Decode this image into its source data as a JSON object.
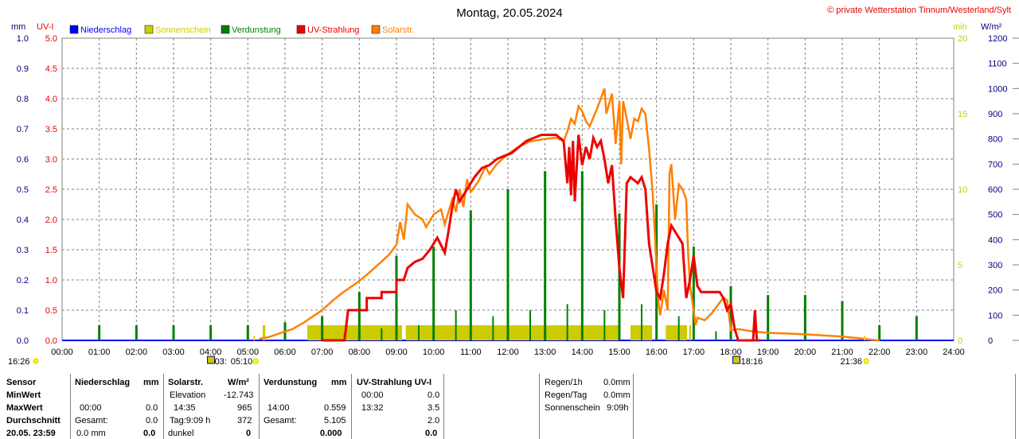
{
  "title": "Montag, 20.05.2024",
  "copyright": "© private Wetterstation Tinnum/Westerland/Sylt",
  "units": {
    "mm": "mm",
    "uvi": "UV-I",
    "min": "min",
    "wm2": "W/m²"
  },
  "legend": [
    {
      "label": "Niederschlag",
      "color": "#0000ff"
    },
    {
      "label": "Sonnenschein",
      "color": "#cccc00"
    },
    {
      "label": "Verdunstung",
      "color": "#008000"
    },
    {
      "label": "UV-Strahlung",
      "color": "#ee0000"
    },
    {
      "label": "Solarstr.",
      "color": "#ff8000"
    }
  ],
  "colors": {
    "grid": "#808080",
    "sunshine": "#cccc00",
    "evap": "#008000",
    "uv": "#ee0000",
    "solar": "#ff8000",
    "mmaxis": "#000080",
    "uvaxis": "#ee0000",
    "minaxis": "#cccc00"
  },
  "chart_data": {
    "type": "line",
    "x_range": [
      0,
      24
    ],
    "x_ticks": [
      "00:00",
      "01:00",
      "02:00",
      "03:00",
      "04:00",
      "05:00",
      "06:00",
      "07:00",
      "08:00",
      "09:00",
      "10:00",
      "11:00",
      "12:00",
      "13:00",
      "14:00",
      "15:00",
      "16:00",
      "17:00",
      "18:00",
      "19:00",
      "20:00",
      "21:00",
      "22:00",
      "23:00",
      "24:00"
    ],
    "axes": {
      "mm": {
        "range": [
          0,
          1
        ],
        "ticks": [
          "0.0",
          "0.1",
          "0.2",
          "0.3",
          "0.4",
          "0.5",
          "0.6",
          "0.7",
          "0.8",
          "0.9",
          "1.0"
        ]
      },
      "uvi": {
        "range": [
          0,
          5
        ],
        "ticks": [
          "0.0",
          "0.5",
          "1.0",
          "1.5",
          "2.0",
          "2.5",
          "3.0",
          "3.5",
          "4.0",
          "4.5",
          "5.0"
        ]
      },
      "min": {
        "range": [
          0,
          20
        ],
        "ticks": [
          "0",
          "5",
          "10",
          "15",
          "20"
        ]
      },
      "wm2": {
        "range": [
          0,
          1200
        ],
        "ticks": [
          "0",
          "100",
          "200",
          "300",
          "400",
          "500",
          "600",
          "700",
          "800",
          "900",
          "1000",
          "1100",
          "1200"
        ]
      }
    },
    "sunrise": {
      "time": "05:10",
      "label": "05:10",
      "pre": "03:",
      "hour": 5.17
    },
    "sunset": {
      "time": "21:36",
      "label": "21:36",
      "hour": 21.6
    },
    "dawn_label": "16:26",
    "marker_1816": {
      "label": "18:16",
      "hour": 18.27
    },
    "series": [
      {
        "name": "Solarstr.",
        "unit": "W/m²",
        "points": [
          [
            5.3,
            5
          ],
          [
            5.6,
            15
          ],
          [
            5.9,
            30
          ],
          [
            6.2,
            45
          ],
          [
            6.5,
            70
          ],
          [
            6.8,
            100
          ],
          [
            7.0,
            120
          ],
          [
            7.3,
            160
          ],
          [
            7.6,
            195
          ],
          [
            7.9,
            225
          ],
          [
            8.2,
            260
          ],
          [
            8.5,
            300
          ],
          [
            8.8,
            340
          ],
          [
            9.0,
            380
          ],
          [
            9.1,
            470
          ],
          [
            9.2,
            400
          ],
          [
            9.3,
            540
          ],
          [
            9.5,
            500
          ],
          [
            9.7,
            480
          ],
          [
            9.8,
            450
          ],
          [
            10.0,
            500
          ],
          [
            10.2,
            520
          ],
          [
            10.3,
            460
          ],
          [
            10.5,
            560
          ],
          [
            10.6,
            510
          ],
          [
            10.7,
            600
          ],
          [
            10.8,
            530
          ],
          [
            10.9,
            640
          ],
          [
            11.0,
            590
          ],
          [
            11.2,
            630
          ],
          [
            11.4,
            690
          ],
          [
            11.5,
            660
          ],
          [
            11.7,
            700
          ],
          [
            12.0,
            740
          ],
          [
            12.3,
            770
          ],
          [
            12.6,
            790
          ],
          [
            13.0,
            800
          ],
          [
            13.3,
            805
          ],
          [
            13.5,
            790
          ],
          [
            13.6,
            830
          ],
          [
            13.7,
            880
          ],
          [
            13.8,
            860
          ],
          [
            13.9,
            930
          ],
          [
            14.0,
            910
          ],
          [
            14.1,
            870
          ],
          [
            14.2,
            850
          ],
          [
            14.4,
            920
          ],
          [
            14.6,
            1000
          ],
          [
            14.65,
            900
          ],
          [
            14.8,
            980
          ],
          [
            14.9,
            780
          ],
          [
            15.0,
            950
          ],
          [
            15.05,
            700
          ],
          [
            15.1,
            950
          ],
          [
            15.2,
            880
          ],
          [
            15.3,
            800
          ],
          [
            15.4,
            880
          ],
          [
            15.5,
            870
          ],
          [
            15.6,
            920
          ],
          [
            15.7,
            900
          ],
          [
            15.8,
            760
          ],
          [
            15.9,
            580
          ],
          [
            16.0,
            290
          ],
          [
            16.05,
            150
          ],
          [
            16.1,
            100
          ],
          [
            16.2,
            200
          ],
          [
            16.3,
            120
          ],
          [
            16.35,
            660
          ],
          [
            16.4,
            700
          ],
          [
            16.5,
            480
          ],
          [
            16.6,
            620
          ],
          [
            16.7,
            600
          ],
          [
            16.8,
            560
          ],
          [
            16.85,
            350
          ],
          [
            16.9,
            220
          ],
          [
            17.0,
            120
          ],
          [
            17.05,
            60
          ],
          [
            17.1,
            90
          ],
          [
            17.3,
            80
          ],
          [
            17.5,
            110
          ],
          [
            17.6,
            130
          ],
          [
            17.7,
            150
          ],
          [
            17.8,
            170
          ],
          [
            17.9,
            160
          ],
          [
            18.0,
            40
          ],
          [
            18.2,
            45
          ],
          [
            18.4,
            40
          ],
          [
            18.6,
            35
          ],
          [
            19.0,
            30
          ],
          [
            19.5,
            27
          ],
          [
            20.0,
            24
          ],
          [
            20.5,
            20
          ],
          [
            21.0,
            15
          ],
          [
            21.5,
            8
          ],
          [
            21.8,
            2
          ],
          [
            22.0,
            0
          ]
        ]
      },
      {
        "name": "UV-Strahlung",
        "unit": "UV-I",
        "points": [
          [
            7.0,
            0
          ],
          [
            7.6,
            0
          ],
          [
            7.7,
            0.5
          ],
          [
            8.2,
            0.5
          ],
          [
            8.2,
            0.7
          ],
          [
            8.6,
            0.7
          ],
          [
            8.6,
            0.8
          ],
          [
            9.0,
            0.8
          ],
          [
            9.0,
            1.0
          ],
          [
            9.2,
            1.0
          ],
          [
            9.3,
            1.2
          ],
          [
            9.5,
            1.3
          ],
          [
            9.7,
            1.35
          ],
          [
            9.9,
            1.5
          ],
          [
            10.1,
            1.7
          ],
          [
            10.3,
            1.45
          ],
          [
            10.4,
            1.8
          ],
          [
            10.5,
            2.2
          ],
          [
            10.6,
            2.5
          ],
          [
            10.7,
            2.3
          ],
          [
            10.9,
            2.5
          ],
          [
            11.1,
            2.7
          ],
          [
            11.3,
            2.85
          ],
          [
            11.5,
            2.9
          ],
          [
            11.7,
            3.0
          ],
          [
            11.9,
            3.05
          ],
          [
            12.1,
            3.1
          ],
          [
            12.3,
            3.2
          ],
          [
            12.5,
            3.3
          ],
          [
            12.7,
            3.35
          ],
          [
            12.9,
            3.4
          ],
          [
            13.1,
            3.4
          ],
          [
            13.3,
            3.4
          ],
          [
            13.5,
            3.3
          ],
          [
            13.6,
            2.6
          ],
          [
            13.65,
            3.2
          ],
          [
            13.7,
            2.4
          ],
          [
            13.75,
            3.3
          ],
          [
            13.8,
            2.3
          ],
          [
            13.9,
            3.4
          ],
          [
            14.0,
            2.9
          ],
          [
            14.1,
            3.2
          ],
          [
            14.2,
            3.0
          ],
          [
            14.3,
            3.35
          ],
          [
            14.4,
            3.2
          ],
          [
            14.5,
            3.3
          ],
          [
            14.6,
            3.0
          ],
          [
            14.7,
            2.6
          ],
          [
            14.8,
            2.9
          ],
          [
            14.9,
            2.0
          ],
          [
            15.0,
            1.2
          ],
          [
            15.1,
            0.7
          ],
          [
            15.2,
            2.6
          ],
          [
            15.3,
            2.7
          ],
          [
            15.5,
            2.6
          ],
          [
            15.6,
            2.7
          ],
          [
            15.7,
            2.5
          ],
          [
            15.8,
            1.6
          ],
          [
            15.9,
            1.2
          ],
          [
            16.0,
            0.8
          ],
          [
            16.1,
            0.7
          ],
          [
            16.2,
            1.1
          ],
          [
            16.3,
            1.6
          ],
          [
            16.4,
            1.9
          ],
          [
            16.6,
            1.7
          ],
          [
            16.7,
            1.6
          ],
          [
            16.8,
            0.7
          ],
          [
            16.9,
            1.0
          ],
          [
            17.0,
            1.4
          ],
          [
            17.1,
            0.9
          ],
          [
            17.2,
            0.8
          ],
          [
            17.5,
            0.8
          ],
          [
            17.7,
            0.8
          ],
          [
            17.8,
            0.7
          ],
          [
            17.9,
            0.5
          ],
          [
            18.0,
            0.6
          ],
          [
            18.1,
            0.2
          ],
          [
            18.2,
            0.0
          ],
          [
            18.6,
            0.0
          ],
          [
            18.65,
            0.5
          ],
          [
            18.7,
            0.0
          ],
          [
            18.8,
            0.0
          ]
        ]
      },
      {
        "name": "Verdunstung",
        "unit": "mm",
        "bars": [
          [
            1,
            0.05
          ],
          [
            2,
            0.05
          ],
          [
            3,
            0.05
          ],
          [
            4,
            0.05
          ],
          [
            5,
            0.05
          ],
          [
            6,
            0.06
          ],
          [
            7,
            0.08
          ],
          [
            8,
            0.16
          ],
          [
            9,
            0.28
          ],
          [
            10,
            0.31
          ],
          [
            11,
            0.43
          ],
          [
            12,
            0.5
          ],
          [
            13,
            0.56
          ],
          [
            14,
            0.56
          ],
          [
            15,
            0.42
          ],
          [
            16,
            0.45
          ],
          [
            17,
            0.31
          ],
          [
            18,
            0.18
          ],
          [
            19,
            0.15
          ],
          [
            20,
            0.15
          ],
          [
            21,
            0.13
          ],
          [
            22,
            0.05
          ],
          [
            23,
            0.08
          ]
        ],
        "minor": [
          [
            7.6,
            0.02
          ],
          [
            8.6,
            0.04
          ],
          [
            9.6,
            0.05
          ],
          [
            10.6,
            0.1
          ],
          [
            11.6,
            0.08
          ],
          [
            12.6,
            0.1
          ],
          [
            13.6,
            0.12
          ],
          [
            14.6,
            0.1
          ],
          [
            15.6,
            0.12
          ],
          [
            16.6,
            0.08
          ],
          [
            17.6,
            0.03
          ],
          [
            18.6,
            0.02
          ]
        ]
      },
      {
        "name": "Sonnenschein",
        "unit": "min",
        "blocks": [
          [
            5.4,
            5.47,
            1.0
          ],
          [
            6.6,
            9.15,
            1.0
          ],
          [
            9.25,
            15.0,
            1.0
          ],
          [
            15.3,
            15.88,
            1.0
          ],
          [
            16.25,
            16.82,
            1.0
          ],
          [
            16.88,
            16.93,
            1.0
          ]
        ]
      }
    ]
  },
  "table": {
    "rows": {
      "r1": "Sensor",
      "r2": "MinWert",
      "r3": "MaxWert",
      "r4": "Durchschnitt",
      "r5": "20.05. 23:59"
    },
    "nied": {
      "head": "Niederschlag",
      "unit": "mm",
      "max_time": "00:00",
      "max_val": "0.0",
      "avg_label": "Gesamt:",
      "avg_val": "0.0",
      "sum_val": "0.0 mm",
      "total": "0.0"
    },
    "solar": {
      "head": "Solarstr.",
      "unit": "W/m²",
      "min_label": "Elevation",
      "min_val": "-12.743",
      "max_time": "14:35",
      "max_val": "965",
      "avg_label": "Tag:9:09 h",
      "avg_val": "372",
      "dark_label": "dunkel",
      "dark_val": "0"
    },
    "verd": {
      "head": "Verdunstung",
      "unit": "mm",
      "max_time": "14:00",
      "max_val": "0.559",
      "avg_label": "Gesamt:",
      "avg_val": "5.105",
      "total": "0.000"
    },
    "uv": {
      "head": "UV-Strahlung UV-I",
      "min_time": "00:00",
      "min_val": "0.0",
      "max_time": "13:32",
      "max_val": "3.5",
      "avg_val": "2.0",
      "total": "0.0"
    },
    "extra": {
      "r1_label": "Regen/1h",
      "r1_val": "0.0mm",
      "r2_label": "Regen/Tag",
      "r2_val": "0.0mm",
      "r3_label": "Sonnenschein",
      "r3_val": "9:09h"
    }
  }
}
